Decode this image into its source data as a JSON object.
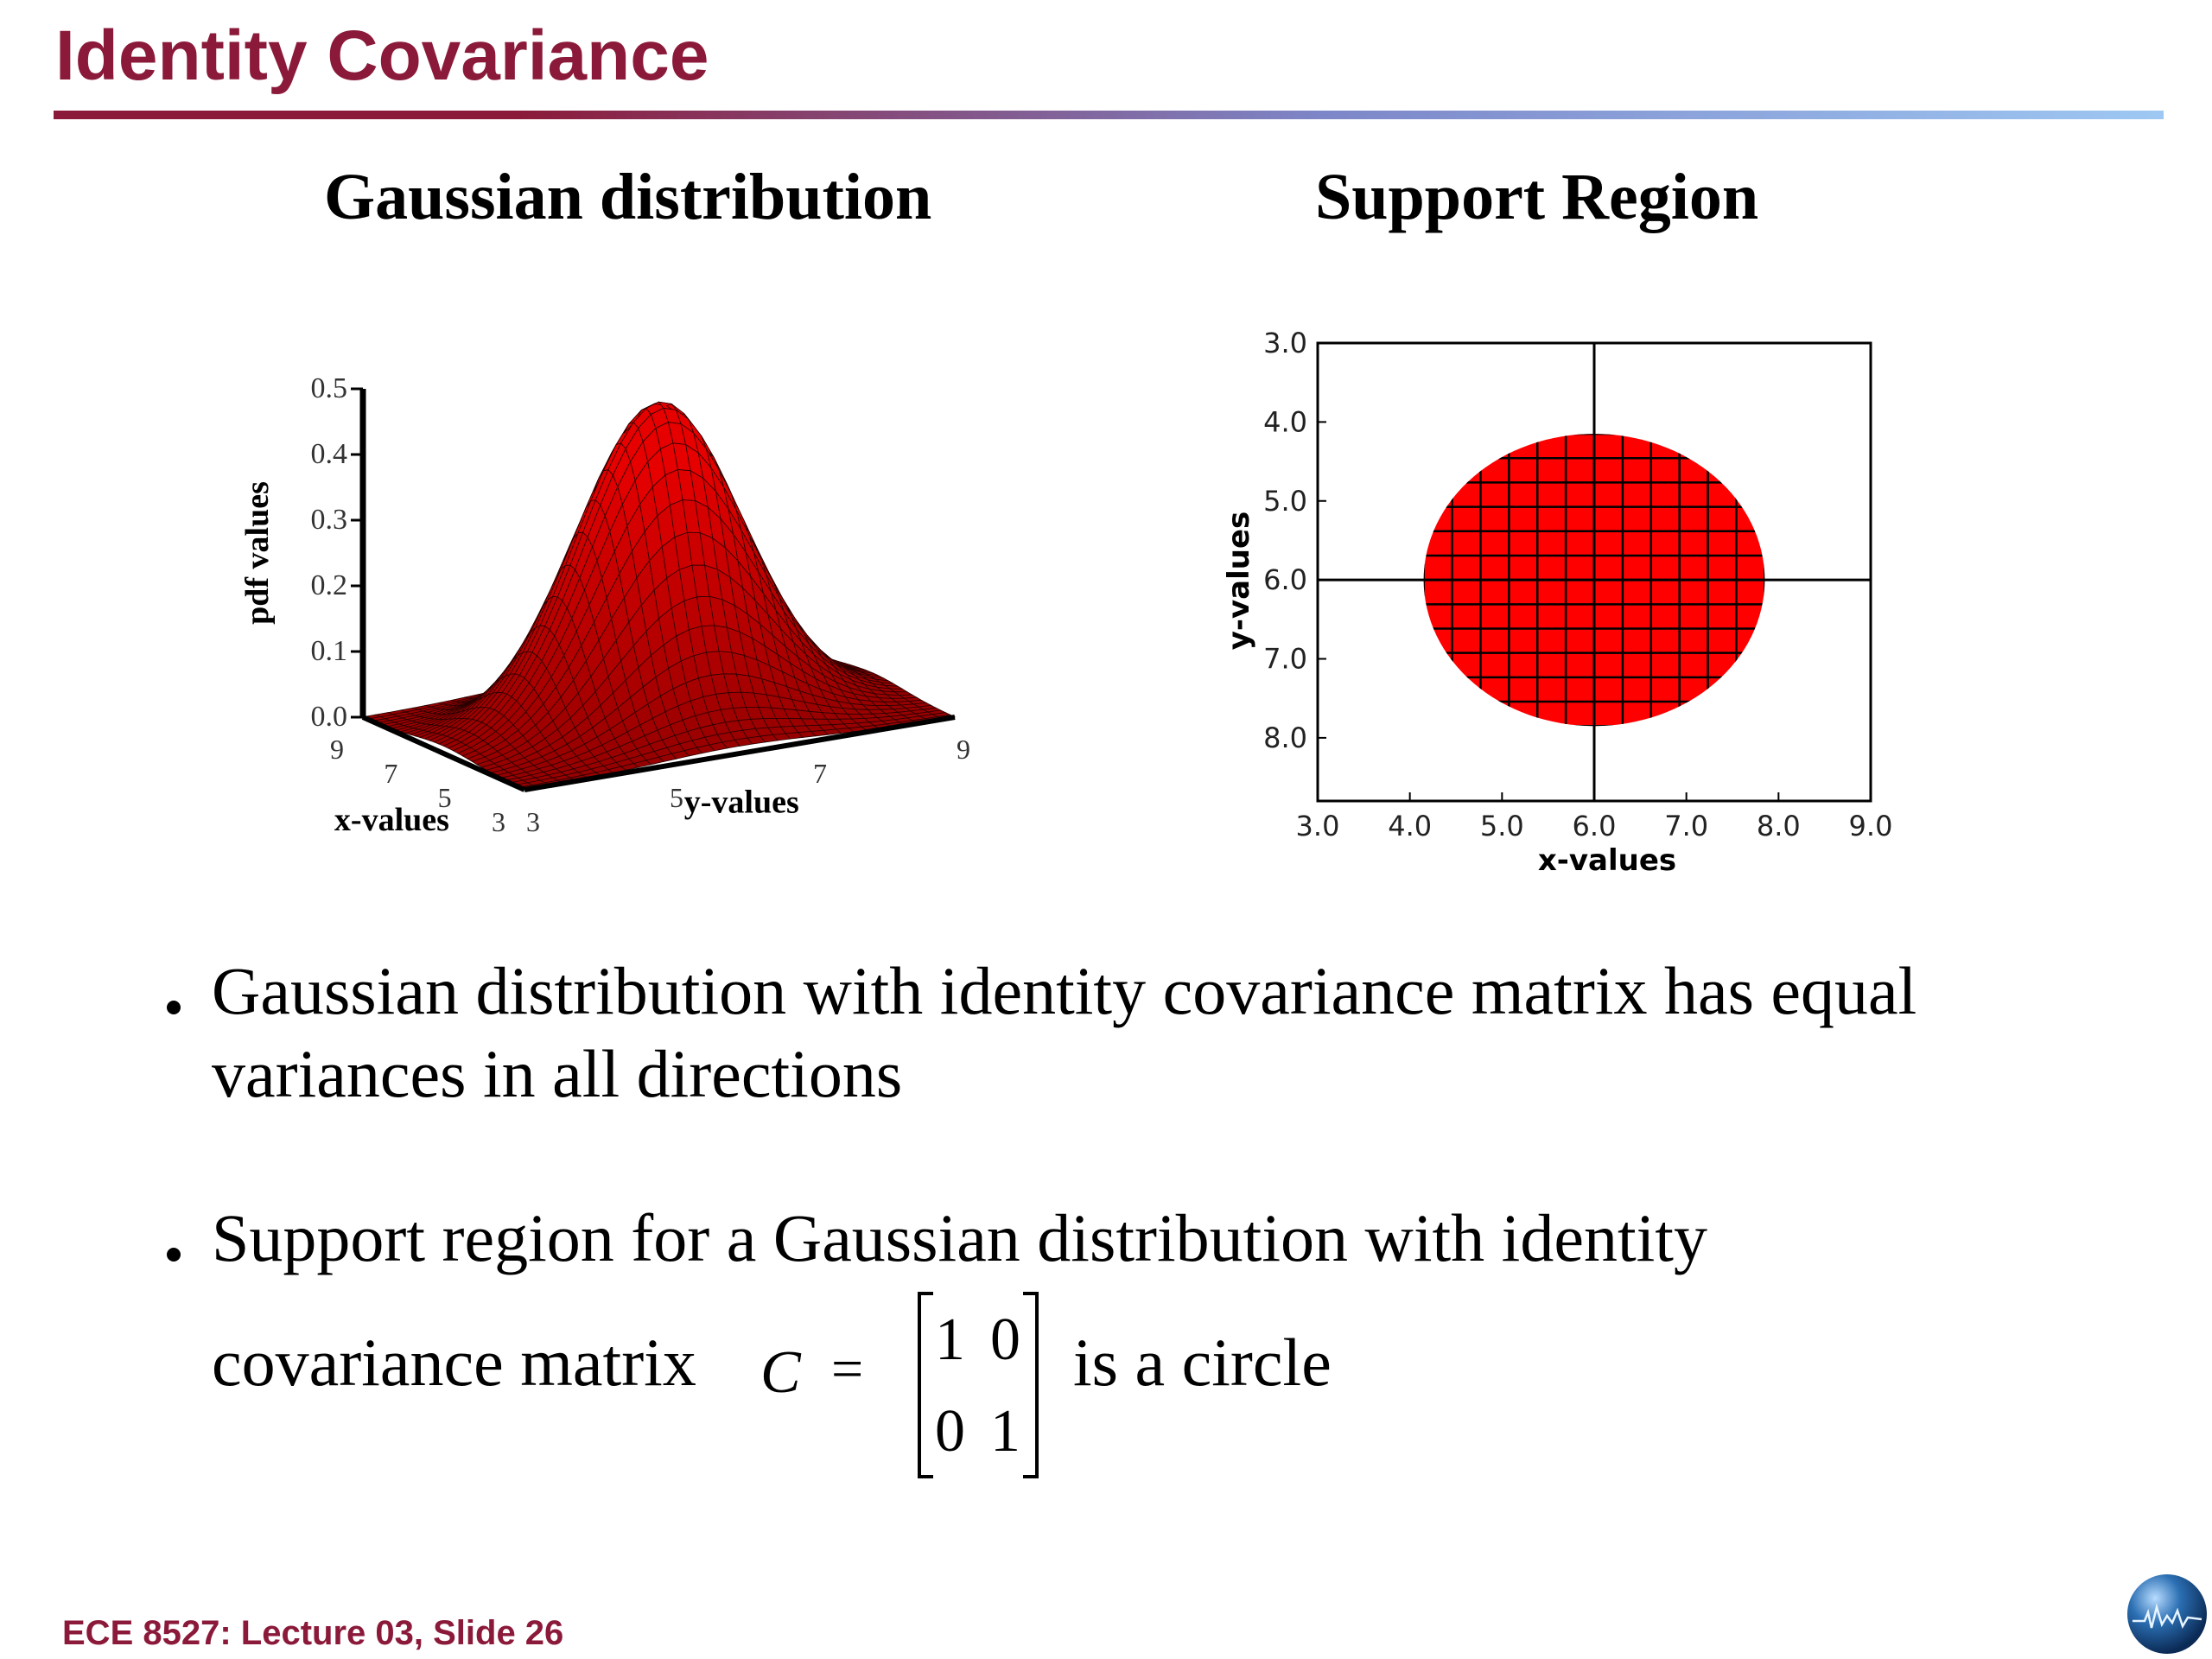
{
  "slide": {
    "title": "Identity Covariance",
    "footer": "ECE 8527: Lecture 03, Slide 26",
    "accent_color": "#8b1a3a",
    "logo_icon": "globe-logo"
  },
  "panels": {
    "left_title": "Gaussian distribution",
    "right_title": "Support Region"
  },
  "chart_data": [
    {
      "type": "surface",
      "title": "Gaussian distribution",
      "xlabel": "x-values",
      "ylabel": "y-values",
      "zlabel": "pdf values",
      "x_ticks": [
        "3",
        "5",
        "7",
        "9"
      ],
      "y_ticks": [
        "3",
        "5",
        "7",
        "9"
      ],
      "z_ticks": [
        "0.0",
        "0.1",
        "0.2",
        "0.3",
        "0.4",
        "0.5"
      ],
      "zlim": [
        0,
        0.5
      ],
      "peak": {
        "x": 6,
        "y": 6,
        "z": 0.48
      },
      "fill_color": "#d40000"
    },
    {
      "type": "scatter",
      "title": "Support Region",
      "xlabel": "x-values",
      "ylabel": "y-values",
      "x_ticks": [
        "3.0",
        "4.0",
        "5.0",
        "6.0",
        "7.0",
        "8.0",
        "9.0"
      ],
      "y_ticks": [
        "3.0",
        "4.0",
        "5.0",
        "6.0",
        "7.0",
        "8.0"
      ],
      "circle": {
        "center": [
          6.0,
          6.0
        ],
        "radius": 1.85
      },
      "fill_color": "#ff0000"
    }
  ],
  "bullets": {
    "b1_line1": "Gaussian distribution with identity covariance matrix has equal",
    "b1_line2": "variances in all directions",
    "b2_line1": "Support region for a Gaussian distribution with identity",
    "b2_line2_pre": "covariance matrix",
    "symbol": "C",
    "equals": "=",
    "matrix": [
      "1",
      "0",
      "0",
      "1"
    ],
    "b2_line2_post": "is a circle"
  }
}
